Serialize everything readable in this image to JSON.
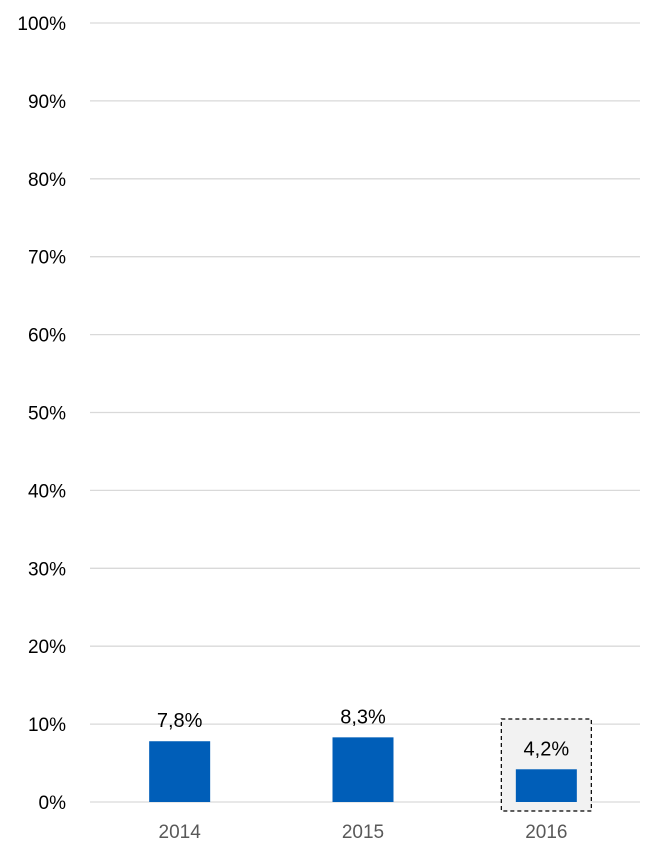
{
  "chart_data": {
    "type": "bar",
    "categories": [
      "2014",
      "2015",
      "2016"
    ],
    "values": [
      7.8,
      8.3,
      4.2
    ],
    "value_labels": [
      "7,8%",
      "8,3%",
      "4,2%"
    ],
    "y_ticks": [
      "0%",
      "10%",
      "20%",
      "30%",
      "40%",
      "50%",
      "60%",
      "70%",
      "80%",
      "90%",
      "100%"
    ],
    "ylim": [
      0,
      100
    ],
    "grid": true,
    "legend": false,
    "highlighted_category": "2016",
    "colors": {
      "bar": "#005EB8",
      "grid": "#D9D9D9",
      "highlight_fill": "#F2F2F2",
      "highlight_border": "#000000"
    }
  }
}
